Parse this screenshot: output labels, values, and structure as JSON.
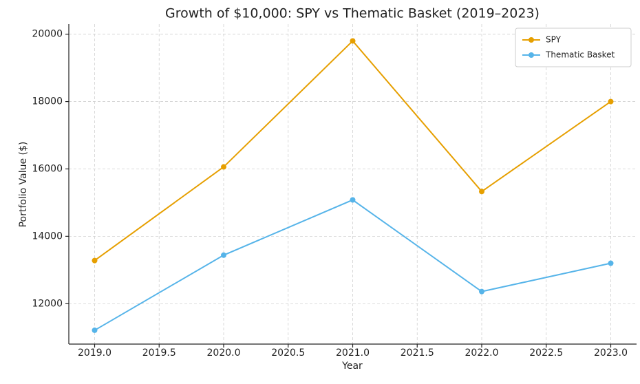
{
  "chart_data": {
    "type": "line",
    "title": "Growth of $10,000: SPY vs Thematic Basket (2019–2023)",
    "x_label": "Year",
    "y_label": "Portfolio Value ($)",
    "x": [
      2019,
      2020,
      2021,
      2022,
      2023
    ],
    "series": [
      {
        "name": "SPY",
        "color": "#e69f00",
        "values": [
          13280,
          16060,
          19800,
          15330,
          18000
        ]
      },
      {
        "name": "Thematic Basket",
        "color": "#56b4e9",
        "values": [
          11210,
          13440,
          15080,
          12360,
          13200
        ]
      }
    ],
    "xlim": [
      2018.8,
      2023.2
    ],
    "xticks": [
      {
        "value": 2019,
        "label": "2019.0"
      },
      {
        "value": 2019.5,
        "label": "2019.5"
      },
      {
        "value": 2020,
        "label": "2020.0"
      },
      {
        "value": 2020.5,
        "label": "2020.5"
      },
      {
        "value": 2021,
        "label": "2021.0"
      },
      {
        "value": 2021.5,
        "label": "2021.5"
      },
      {
        "value": 2022,
        "label": "2022.0"
      },
      {
        "value": 2022.5,
        "label": "2022.5"
      },
      {
        "value": 2023,
        "label": "2023.0"
      }
    ],
    "ylim": [
      10800,
      20300
    ],
    "yticks": [
      12000,
      14000,
      16000,
      18000,
      20000
    ],
    "grid": true,
    "legend": "upper-right"
  }
}
